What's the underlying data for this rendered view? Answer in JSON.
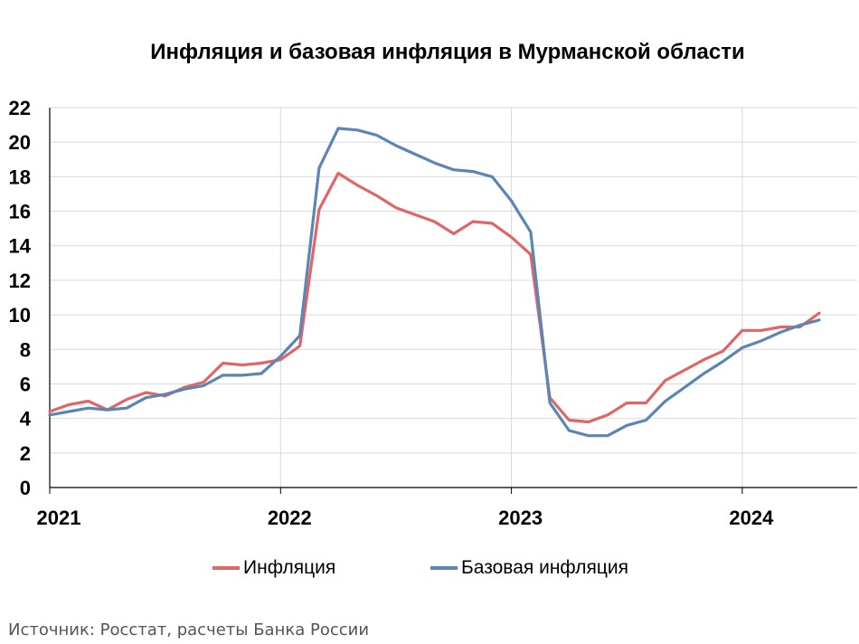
{
  "chart_data": {
    "type": "line",
    "title": "Инфляция и базовая инфляция в Мурманской области",
    "xlabel": "",
    "ylabel": "",
    "ylim": [
      0,
      22
    ],
    "yticks": [
      0,
      2,
      4,
      6,
      8,
      10,
      12,
      14,
      16,
      18,
      20,
      22
    ],
    "xticks": [
      "2021",
      "2022",
      "2023",
      "2024"
    ],
    "grid": true,
    "legend_position": "bottom",
    "x": [
      "2021-01",
      "2021-02",
      "2021-03",
      "2021-04",
      "2021-05",
      "2021-06",
      "2021-07",
      "2021-08",
      "2021-09",
      "2021-10",
      "2021-11",
      "2021-12",
      "2022-01",
      "2022-02",
      "2022-03",
      "2022-04",
      "2022-05",
      "2022-06",
      "2022-07",
      "2022-08",
      "2022-09",
      "2022-10",
      "2022-11",
      "2022-12",
      "2023-01",
      "2023-02",
      "2023-03",
      "2023-04",
      "2023-05",
      "2023-06",
      "2023-07",
      "2023-08",
      "2023-09",
      "2023-10",
      "2023-11",
      "2023-12",
      "2024-01",
      "2024-02",
      "2024-03",
      "2024-04",
      "2024-05"
    ],
    "series": [
      {
        "name": "Инфляция",
        "color": "#e06666",
        "values": [
          4.4,
          4.8,
          5.0,
          4.5,
          5.1,
          5.5,
          5.3,
          5.8,
          6.1,
          7.2,
          7.1,
          7.2,
          7.4,
          8.2,
          16.1,
          18.2,
          17.5,
          16.9,
          16.2,
          15.8,
          15.4,
          14.7,
          15.4,
          15.3,
          14.5,
          13.5,
          5.2,
          3.9,
          3.8,
          4.2,
          4.9,
          4.9,
          6.2,
          6.8,
          7.4,
          7.9,
          9.1,
          9.1,
          9.3,
          9.3,
          10.1
        ]
      },
      {
        "name": "Базовая инфляция",
        "color": "#5b85b5",
        "values": [
          4.2,
          4.4,
          4.6,
          4.5,
          4.6,
          5.2,
          5.4,
          5.7,
          5.9,
          6.5,
          6.5,
          6.6,
          7.6,
          8.8,
          18.5,
          20.8,
          20.7,
          20.4,
          19.8,
          19.3,
          18.8,
          18.4,
          18.3,
          18.0,
          16.6,
          14.8,
          4.9,
          3.3,
          3.0,
          3.0,
          3.6,
          3.9,
          5.0,
          5.8,
          6.6,
          7.3,
          8.1,
          8.5,
          9.0,
          9.4,
          9.7
        ]
      }
    ]
  },
  "source_note": "Источник: Росстат, расчеты Банка России"
}
